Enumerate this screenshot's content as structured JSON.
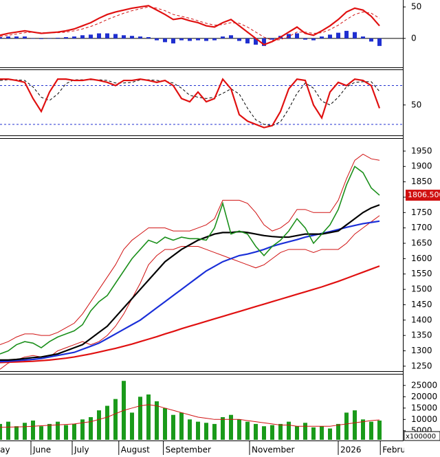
{
  "chart_data": [
    {
      "type": "line",
      "ylim": [
        -46,
        61
      ],
      "yticks": [
        0,
        50
      ],
      "series": [
        {
          "style": "bars",
          "color": "#1f2fd0",
          "values": [
            2,
            3,
            3,
            3,
            0,
            -1,
            0,
            1,
            2,
            3,
            5,
            6,
            8,
            8,
            7,
            5,
            4,
            3,
            2,
            -3,
            -6,
            -8,
            -3,
            -4,
            -3,
            -4,
            -3,
            3,
            5,
            -4,
            -8,
            -10,
            -12,
            -2,
            4,
            7,
            8,
            -2,
            -3,
            3,
            6,
            9,
            12,
            10,
            3,
            -5,
            -12
          ]
        },
        {
          "style": "dashed",
          "color": "#d01010",
          "values": [
            3,
            5,
            7,
            9,
            10,
            9,
            9,
            9,
            10,
            12,
            15,
            19,
            24,
            30,
            35,
            40,
            44,
            47,
            50,
            48,
            44,
            38,
            35,
            32,
            28,
            24,
            21,
            22,
            25,
            24,
            18,
            10,
            2,
            -3,
            -2,
            3,
            10,
            10,
            8,
            9,
            14,
            21,
            30,
            38,
            42,
            40,
            32
          ]
        },
        {
          "style": "line",
          "color": "#e01010",
          "values": [
            5,
            8,
            10,
            12,
            10,
            8,
            9,
            10,
            12,
            15,
            20,
            25,
            32,
            38,
            42,
            45,
            48,
            50,
            52,
            45,
            38,
            30,
            32,
            28,
            25,
            20,
            18,
            25,
            30,
            20,
            10,
            0,
            -10,
            -5,
            2,
            10,
            18,
            8,
            5,
            12,
            20,
            30,
            42,
            48,
            45,
            35,
            20
          ]
        }
      ]
    },
    {
      "type": "line",
      "ylim": [
        4,
        104
      ],
      "yticks": [
        50
      ],
      "levels": [
        80,
        20
      ],
      "level_color": "#1f2fd0",
      "series": [
        {
          "style": "dashed",
          "color": "#000000",
          "values": [
            88,
            89,
            89,
            88,
            78,
            62,
            57,
            67,
            83,
            89,
            89,
            89,
            89,
            88,
            84,
            84,
            85,
            89,
            89,
            88,
            87,
            84,
            76,
            65,
            62,
            60,
            62,
            68,
            75,
            67,
            45,
            27,
            20,
            18,
            24,
            44,
            68,
            84,
            76,
            56,
            50,
            62,
            78,
            85,
            86,
            86,
            71
          ]
        },
        {
          "style": "line",
          "color": "#e01010",
          "values": [
            90,
            90,
            88,
            85,
            60,
            40,
            70,
            90,
            90,
            88,
            88,
            90,
            88,
            85,
            80,
            88,
            88,
            90,
            88,
            85,
            88,
            80,
            60,
            55,
            70,
            55,
            60,
            90,
            75,
            35,
            25,
            20,
            15,
            18,
            40,
            75,
            90,
            88,
            50,
            30,
            70,
            85,
            80,
            90,
            88,
            80,
            45
          ]
        }
      ]
    },
    {
      "type": "line",
      "ylim": [
        1234,
        1990
      ],
      "yticks": [
        1250,
        1300,
        1350,
        1400,
        1450,
        1500,
        1550,
        1600,
        1650,
        1700,
        1750,
        1800,
        1850,
        1900,
        1950
      ],
      "last_label": {
        "value": 1806.5,
        "label": "1806.500"
      },
      "last_color": "#d01010",
      "series": [
        {
          "style": "thin",
          "color": "#d01010",
          "values": [
            1320,
            1330,
            1345,
            1355,
            1355,
            1350,
            1350,
            1360,
            1375,
            1390,
            1420,
            1460,
            1500,
            1540,
            1580,
            1630,
            1660,
            1680,
            1700,
            1700,
            1700,
            1690,
            1690,
            1690,
            1700,
            1710,
            1730,
            1790,
            1790,
            1790,
            1780,
            1750,
            1710,
            1690,
            1700,
            1720,
            1760,
            1760,
            1750,
            1750,
            1750,
            1790,
            1860,
            1920,
            1940,
            1925,
            1920
          ]
        },
        {
          "style": "thin",
          "color": "#d01010",
          "values": [
            1240,
            1260,
            1270,
            1280,
            1285,
            1280,
            1280,
            1300,
            1310,
            1320,
            1330,
            1320,
            1330,
            1350,
            1380,
            1420,
            1470,
            1520,
            1580,
            1610,
            1630,
            1630,
            1640,
            1640,
            1640,
            1630,
            1620,
            1610,
            1600,
            1590,
            1580,
            1570,
            1580,
            1600,
            1620,
            1630,
            1630,
            1630,
            1620,
            1630,
            1630,
            1630,
            1650,
            1680,
            1700,
            1720,
            1740
          ]
        },
        {
          "style": "line",
          "color": "#e01010",
          "values": [
            1262,
            1263,
            1264,
            1265,
            1266,
            1268,
            1270,
            1273,
            1276,
            1280,
            1285,
            1290,
            1296,
            1302,
            1308,
            1315,
            1322,
            1330,
            1338,
            1346,
            1355,
            1363,
            1372,
            1380,
            1388,
            1396,
            1404,
            1412,
            1420,
            1428,
            1436,
            1444,
            1452,
            1460,
            1468,
            1476,
            1484,
            1492,
            1500,
            1508,
            1517,
            1526,
            1536,
            1546,
            1556,
            1566,
            1576
          ]
        },
        {
          "style": "line",
          "color": "#1a2fd8",
          "values": [
            1265,
            1266,
            1268,
            1270,
            1272,
            1275,
            1280,
            1285,
            1290,
            1295,
            1305,
            1315,
            1325,
            1340,
            1355,
            1370,
            1385,
            1400,
            1420,
            1440,
            1460,
            1480,
            1500,
            1520,
            1540,
            1560,
            1575,
            1590,
            1600,
            1610,
            1615,
            1622,
            1630,
            1640,
            1648,
            1655,
            1662,
            1670,
            1676,
            1682,
            1688,
            1695,
            1702,
            1708,
            1714,
            1718,
            1722
          ]
        },
        {
          "style": "line",
          "color": "#000000",
          "values": [
            1270,
            1270,
            1272,
            1275,
            1278,
            1280,
            1285,
            1290,
            1300,
            1310,
            1320,
            1340,
            1360,
            1380,
            1410,
            1440,
            1470,
            1500,
            1530,
            1560,
            1590,
            1610,
            1630,
            1645,
            1660,
            1670,
            1680,
            1685,
            1685,
            1688,
            1685,
            1680,
            1675,
            1672,
            1670,
            1670,
            1675,
            1680,
            1680,
            1680,
            1685,
            1690,
            1710,
            1730,
            1750,
            1765,
            1775
          ]
        },
        {
          "style": "price",
          "color": "#1a8f1a",
          "values": [
            1290,
            1300,
            1320,
            1330,
            1325,
            1310,
            1330,
            1345,
            1355,
            1365,
            1385,
            1430,
            1460,
            1480,
            1520,
            1560,
            1600,
            1630,
            1660,
            1650,
            1670,
            1660,
            1670,
            1665,
            1665,
            1660,
            1700,
            1780,
            1680,
            1690,
            1680,
            1640,
            1610,
            1640,
            1660,
            1690,
            1730,
            1700,
            1650,
            1680,
            1710,
            1760,
            1840,
            1900,
            1880,
            1830,
            1806.5
          ]
        }
      ]
    },
    {
      "type": "bar",
      "ylim": [
        1000,
        29800
      ],
      "yticks": [
        5000,
        10000,
        15000,
        20000,
        25000
      ],
      "unit_label": "x100000",
      "xticks": [
        {
          "value": -1.1,
          "label": "May"
        },
        {
          "value": 3.75,
          "label": "June"
        },
        {
          "value": 8.75,
          "label": "July"
        },
        {
          "value": 14.4,
          "label": "August"
        },
        {
          "value": 19.8,
          "label": "September"
        },
        {
          "value": 30.25,
          "label": "November"
        },
        {
          "value": 41,
          "label": "2026"
        },
        {
          "value": 46.1,
          "label": "February"
        }
      ],
      "series": [
        {
          "style": "bars",
          "color": "#1a9a1a",
          "values": [
            8000,
            9000,
            7000,
            8500,
            9500,
            7000,
            8000,
            9000,
            7500,
            8000,
            10000,
            11000,
            14000,
            16000,
            19000,
            27000,
            13000,
            20000,
            21000,
            18000,
            15000,
            12000,
            13000,
            10000,
            9000,
            8500,
            8000,
            11000,
            12000,
            10000,
            9000,
            8000,
            7000,
            7500,
            8000,
            9000,
            7000,
            8500,
            6500,
            7000,
            6000,
            8000,
            13000,
            14000,
            10000,
            9000,
            9500
          ]
        },
        {
          "style": "thin",
          "color": "#d01010",
          "values": [
            6500,
            6600,
            6700,
            6800,
            7000,
            7200,
            7400,
            7600,
            7800,
            8000,
            8500,
            9000,
            10000,
            11000,
            12500,
            14000,
            15000,
            16000,
            16500,
            16000,
            15000,
            14000,
            13000,
            12000,
            11000,
            10500,
            10000,
            10000,
            10000,
            10000,
            9500,
            9000,
            8500,
            8000,
            7500,
            7500,
            7000,
            7000,
            7000,
            7000,
            7000,
            7500,
            8000,
            8500,
            9000,
            9500,
            9800
          ]
        }
      ]
    }
  ]
}
